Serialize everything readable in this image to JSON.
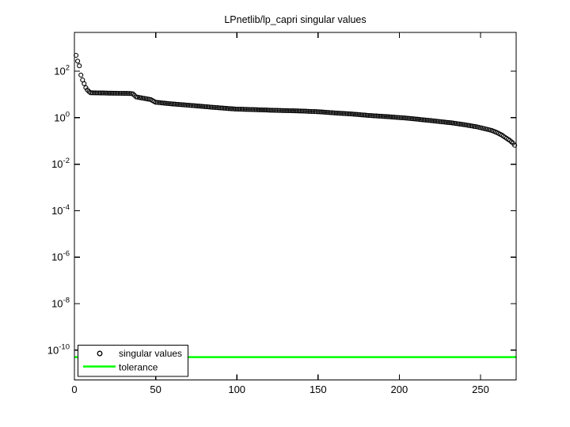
{
  "figure": {
    "title": "LPnetlib/lp_capri singular values",
    "background": "#ffffff"
  },
  "colors": {
    "marker": "#000000",
    "tolerance_line": "#00ff00",
    "axis": "#000000"
  },
  "axes": {
    "x_tick_labels": [
      "0",
      "50",
      "100",
      "150",
      "200",
      "250"
    ],
    "y_tick_base": "10",
    "y_tick_exponents": [
      "2",
      "0",
      "-2",
      "-4",
      "-6",
      "-8",
      "-10"
    ]
  },
  "legend": {
    "items": [
      {
        "label": "singular values",
        "marker": "open-circle",
        "color": "#000000"
      },
      {
        "label": "tolerance",
        "marker": "line",
        "color": "#00ff00"
      }
    ]
  },
  "chart_data": {
    "type": "scatter",
    "title": "LPnetlib/lp_capri singular values",
    "xlabel": "",
    "ylabel": "",
    "y_scale": "log10",
    "xlim": [
      0,
      272
    ],
    "x_ticks": [
      0,
      50,
      100,
      150,
      200,
      250
    ],
    "y_tick_values": [
      100.0,
      1.0,
      0.01,
      0.0001,
      1e-06,
      1e-08,
      1e-10
    ],
    "grid": false,
    "legend_position": "south-west-inside",
    "n_points": 271,
    "series": [
      {
        "name": "singular values",
        "type": "scatter",
        "marker": "open-circle",
        "color": "#000000",
        "interpolation": "log-linear between anchor indices",
        "anchor_points": [
          [
            1,
            480
          ],
          [
            2,
            270
          ],
          [
            3,
            170
          ],
          [
            4,
            68
          ],
          [
            5,
            42
          ],
          [
            6,
            29
          ],
          [
            7,
            19.5
          ],
          [
            8,
            15.5
          ],
          [
            9,
            13.2
          ],
          [
            10,
            11.8
          ],
          [
            20,
            11.4
          ],
          [
            34,
            11.0
          ],
          [
            36,
            10.6
          ],
          [
            38,
            7.8
          ],
          [
            47,
            6.0
          ],
          [
            50,
            4.6
          ],
          [
            60,
            3.9
          ],
          [
            71,
            3.4
          ],
          [
            85,
            2.8
          ],
          [
            99,
            2.35
          ],
          [
            112,
            2.2
          ],
          [
            125,
            2.05
          ],
          [
            138,
            1.95
          ],
          [
            150,
            1.8
          ],
          [
            160,
            1.6
          ],
          [
            170,
            1.45
          ],
          [
            181,
            1.25
          ],
          [
            193,
            1.1
          ],
          [
            205,
            0.95
          ],
          [
            220,
            0.74
          ],
          [
            232,
            0.6
          ],
          [
            240,
            0.5
          ],
          [
            248,
            0.4
          ],
          [
            253,
            0.33
          ],
          [
            257,
            0.28
          ],
          [
            260,
            0.23
          ],
          [
            263,
            0.18
          ],
          [
            266,
            0.13
          ],
          [
            268,
            0.105
          ],
          [
            270,
            0.08
          ],
          [
            271,
            0.065
          ]
        ]
      },
      {
        "name": "tolerance",
        "type": "hline",
        "color": "#00ff00",
        "value": 5e-11
      }
    ]
  }
}
